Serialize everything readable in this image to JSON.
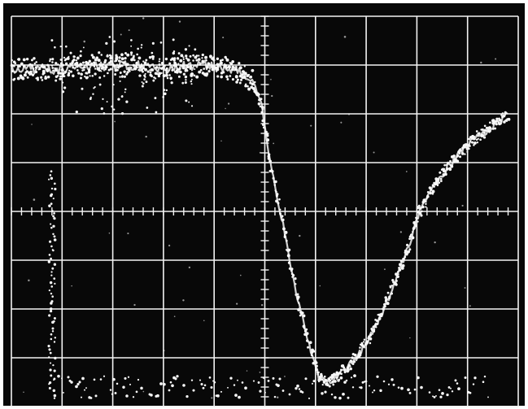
{
  "graticule": {
    "divisions_x": 10,
    "divisions_y": 8,
    "minor_per_division": 5
  },
  "colors": {
    "screen": "#080808",
    "grid": "#f2f2f2",
    "trace": "#f7f7f7",
    "border": "#ffffff"
  }
}
